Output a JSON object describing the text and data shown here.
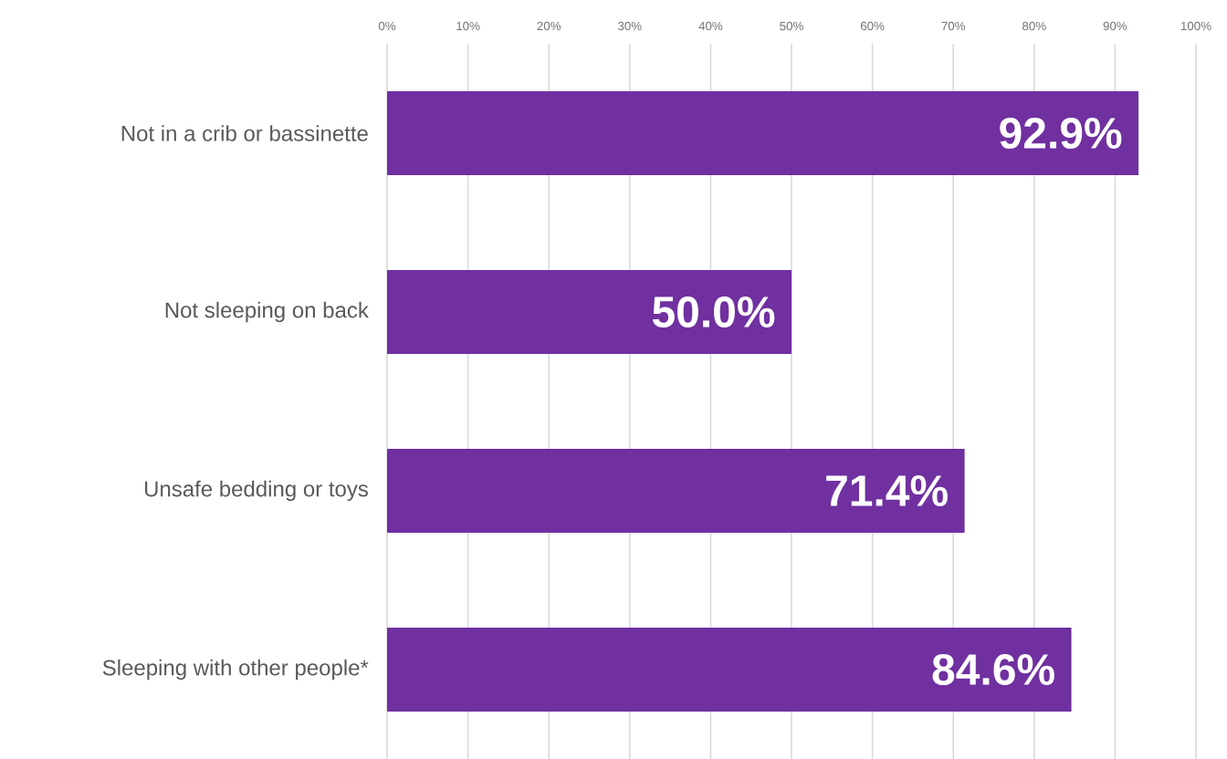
{
  "chart_data": {
    "type": "bar",
    "orientation": "horizontal",
    "categories": [
      "Not in a crib or bassinette",
      "Not sleeping on back",
      "Unsafe bedding or toys",
      "Sleeping with other people*"
    ],
    "values": [
      92.9,
      50.0,
      71.4,
      84.6
    ],
    "value_labels": [
      "92.9%",
      "50.0%",
      "71.4%",
      "84.6%"
    ],
    "color": "#7030a0",
    "xlim": [
      0,
      100
    ],
    "xticks": [
      {
        "value": 0,
        "label": "0%"
      },
      {
        "value": 10,
        "label": "10%"
      },
      {
        "value": 20,
        "label": "20%"
      },
      {
        "value": 30,
        "label": "30%"
      },
      {
        "value": 40,
        "label": "40%"
      },
      {
        "value": 50,
        "label": "50%"
      },
      {
        "value": 60,
        "label": "60%"
      },
      {
        "value": 70,
        "label": "70%"
      },
      {
        "value": 80,
        "label": "80%"
      },
      {
        "value": 90,
        "label": "90%"
      },
      {
        "value": 100,
        "label": "100%"
      }
    ],
    "grid": "x"
  }
}
